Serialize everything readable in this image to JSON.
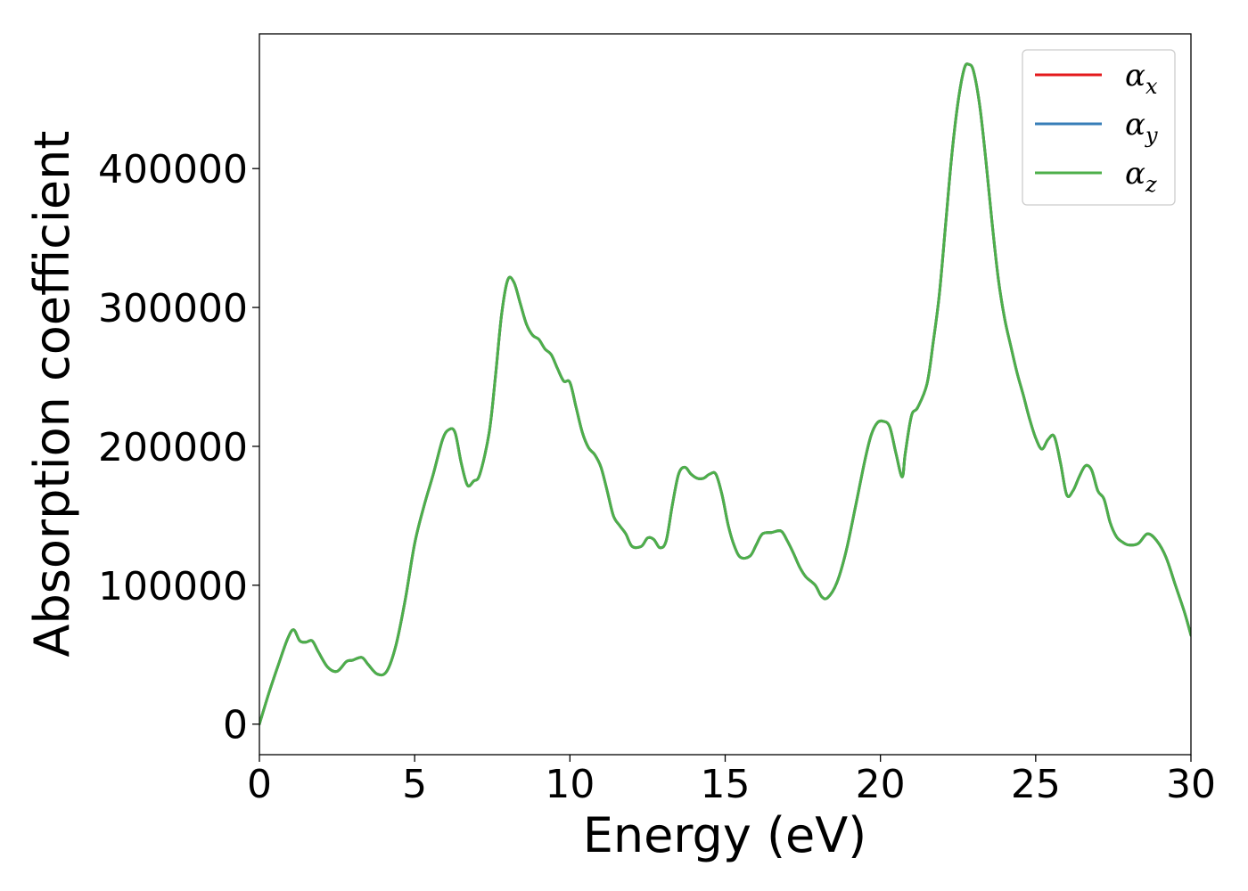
{
  "chart_data": {
    "type": "line",
    "title": "",
    "xlabel": "Energy (eV)",
    "ylabel": "Absorption coefficient",
    "xlim": [
      0,
      30
    ],
    "ylim": [
      -22000,
      497000
    ],
    "xticks": [
      0,
      5,
      10,
      15,
      20,
      25,
      30
    ],
    "xtick_labels": [
      "0",
      "5",
      "10",
      "15",
      "20",
      "25",
      "30"
    ],
    "yticks": [
      0,
      100000,
      200000,
      300000,
      400000
    ],
    "ytick_labels": [
      "0",
      "100000",
      "200000",
      "300000",
      "400000"
    ],
    "grid": false,
    "legend_position": "top-right",
    "legend": [
      {
        "symbol": "α",
        "sub": "x",
        "color": "#e41a1c"
      },
      {
        "symbol": "α",
        "sub": "y",
        "color": "#377eb8"
      },
      {
        "symbol": "α",
        "sub": "z",
        "color": "#4daf4a"
      }
    ],
    "x": [
      0,
      0.3,
      0.6,
      0.9,
      1.1,
      1.3,
      1.5,
      1.7,
      1.9,
      2.2,
      2.5,
      2.8,
      3.0,
      3.3,
      3.5,
      3.8,
      4.1,
      4.4,
      4.7,
      5.0,
      5.3,
      5.6,
      5.9,
      6.1,
      6.3,
      6.5,
      6.7,
      6.9,
      7.1,
      7.4,
      7.6,
      7.8,
      8.0,
      8.2,
      8.4,
      8.6,
      8.8,
      9.0,
      9.2,
      9.4,
      9.6,
      9.8,
      10.0,
      10.2,
      10.4,
      10.6,
      10.8,
      11.0,
      11.2,
      11.4,
      11.6,
      11.8,
      12.0,
      12.3,
      12.5,
      12.7,
      12.9,
      13.1,
      13.3,
      13.5,
      13.7,
      13.9,
      14.1,
      14.3,
      14.5,
      14.7,
      14.9,
      15.1,
      15.3,
      15.5,
      15.8,
      16.0,
      16.2,
      16.5,
      16.8,
      17.0,
      17.2,
      17.4,
      17.6,
      17.9,
      18.1,
      18.3,
      18.6,
      18.9,
      19.2,
      19.5,
      19.7,
      19.9,
      20.1,
      20.3,
      20.5,
      20.7,
      20.8,
      21.0,
      21.2,
      21.5,
      21.7,
      21.9,
      22.1,
      22.3,
      22.5,
      22.7,
      22.85,
      23.0,
      23.2,
      23.4,
      23.6,
      23.8,
      24.0,
      24.2,
      24.4,
      24.6,
      24.8,
      25.0,
      25.2,
      25.4,
      25.6,
      25.8,
      26.0,
      26.2,
      26.4,
      26.6,
      26.8,
      27.0,
      27.2,
      27.4,
      27.6,
      27.8,
      28.0,
      28.3,
      28.6,
      28.9,
      29.2,
      29.5,
      29.8,
      30.0
    ],
    "series": [
      {
        "color": "#e41a1c",
        "values": [
          0,
          22000,
          42000,
          61000,
          68000,
          60000,
          59000,
          60000,
          52000,
          41000,
          38000,
          45000,
          46000,
          48000,
          43000,
          36000,
          38000,
          57000,
          90000,
          130000,
          157000,
          180000,
          205000,
          212000,
          210000,
          188000,
          172000,
          175000,
          180000,
          210000,
          250000,
          295000,
          320000,
          318000,
          303000,
          288000,
          280000,
          277000,
          270000,
          266000,
          256000,
          247000,
          246000,
          228000,
          210000,
          199000,
          194000,
          185000,
          168000,
          150000,
          143000,
          137000,
          128000,
          128000,
          134000,
          133000,
          127000,
          132000,
          158000,
          180000,
          185000,
          180000,
          177000,
          177000,
          180000,
          180000,
          165000,
          143000,
          128000,
          120000,
          121000,
          129000,
          137000,
          138000,
          139000,
          132000,
          123000,
          113000,
          106000,
          100000,
          92000,
          91000,
          102000,
          125000,
          157000,
          190000,
          208000,
          217000,
          218000,
          214000,
          195000,
          178000,
          195000,
          222000,
          228000,
          245000,
          275000,
          310000,
          360000,
          410000,
          448000,
          472000,
          475000,
          470000,
          445000,
          405000,
          360000,
          320000,
          292000,
          272000,
          253000,
          237000,
          220000,
          206000,
          198000,
          205000,
          207000,
          188000,
          165000,
          168000,
          178000,
          186000,
          183000,
          168000,
          162000,
          145000,
          135000,
          131000,
          129000,
          130000,
          137000,
          132000,
          120000,
          100000,
          80000,
          64000
        ]
      },
      {
        "color": "#377eb8",
        "values": [
          0,
          22000,
          42000,
          61000,
          68000,
          60000,
          59000,
          60000,
          52000,
          41000,
          38000,
          45000,
          46000,
          48000,
          43000,
          36000,
          38000,
          57000,
          90000,
          130000,
          157000,
          180000,
          205000,
          212000,
          210000,
          188000,
          172000,
          175000,
          180000,
          210000,
          250000,
          295000,
          320000,
          318000,
          303000,
          288000,
          280000,
          277000,
          270000,
          266000,
          256000,
          247000,
          246000,
          228000,
          210000,
          199000,
          194000,
          185000,
          168000,
          150000,
          143000,
          137000,
          128000,
          128000,
          134000,
          133000,
          127000,
          132000,
          158000,
          180000,
          185000,
          180000,
          177000,
          177000,
          180000,
          180000,
          165000,
          143000,
          128000,
          120000,
          121000,
          129000,
          137000,
          138000,
          139000,
          132000,
          123000,
          113000,
          106000,
          100000,
          92000,
          91000,
          102000,
          125000,
          157000,
          190000,
          208000,
          217000,
          218000,
          214000,
          195000,
          178000,
          195000,
          222000,
          228000,
          245000,
          275000,
          310000,
          360000,
          410000,
          448000,
          472000,
          475000,
          470000,
          445000,
          405000,
          360000,
          320000,
          292000,
          272000,
          253000,
          237000,
          220000,
          206000,
          198000,
          205000,
          207000,
          188000,
          165000,
          168000,
          178000,
          186000,
          183000,
          168000,
          162000,
          145000,
          135000,
          131000,
          129000,
          130000,
          137000,
          132000,
          120000,
          100000,
          80000,
          64000
        ]
      },
      {
        "color": "#4daf4a",
        "values": [
          0,
          22000,
          42000,
          61000,
          68000,
          60000,
          59000,
          60000,
          52000,
          41000,
          38000,
          45000,
          46000,
          48000,
          43000,
          36000,
          38000,
          57000,
          90000,
          130000,
          157000,
          180000,
          205000,
          212000,
          210000,
          188000,
          172000,
          175000,
          180000,
          210000,
          250000,
          295000,
          320000,
          318000,
          303000,
          288000,
          280000,
          277000,
          270000,
          266000,
          256000,
          247000,
          246000,
          228000,
          210000,
          199000,
          194000,
          185000,
          168000,
          150000,
          143000,
          137000,
          128000,
          128000,
          134000,
          133000,
          127000,
          132000,
          158000,
          180000,
          185000,
          180000,
          177000,
          177000,
          180000,
          180000,
          165000,
          143000,
          128000,
          120000,
          121000,
          129000,
          137000,
          138000,
          139000,
          132000,
          123000,
          113000,
          106000,
          100000,
          92000,
          91000,
          102000,
          125000,
          157000,
          190000,
          208000,
          217000,
          218000,
          214000,
          195000,
          178000,
          195000,
          222000,
          228000,
          245000,
          275000,
          310000,
          360000,
          410000,
          448000,
          472000,
          475000,
          470000,
          445000,
          405000,
          360000,
          320000,
          292000,
          272000,
          253000,
          237000,
          220000,
          206000,
          198000,
          205000,
          207000,
          188000,
          165000,
          168000,
          178000,
          186000,
          183000,
          168000,
          162000,
          145000,
          135000,
          131000,
          129000,
          130000,
          137000,
          132000,
          120000,
          100000,
          80000,
          64000
        ]
      }
    ]
  }
}
